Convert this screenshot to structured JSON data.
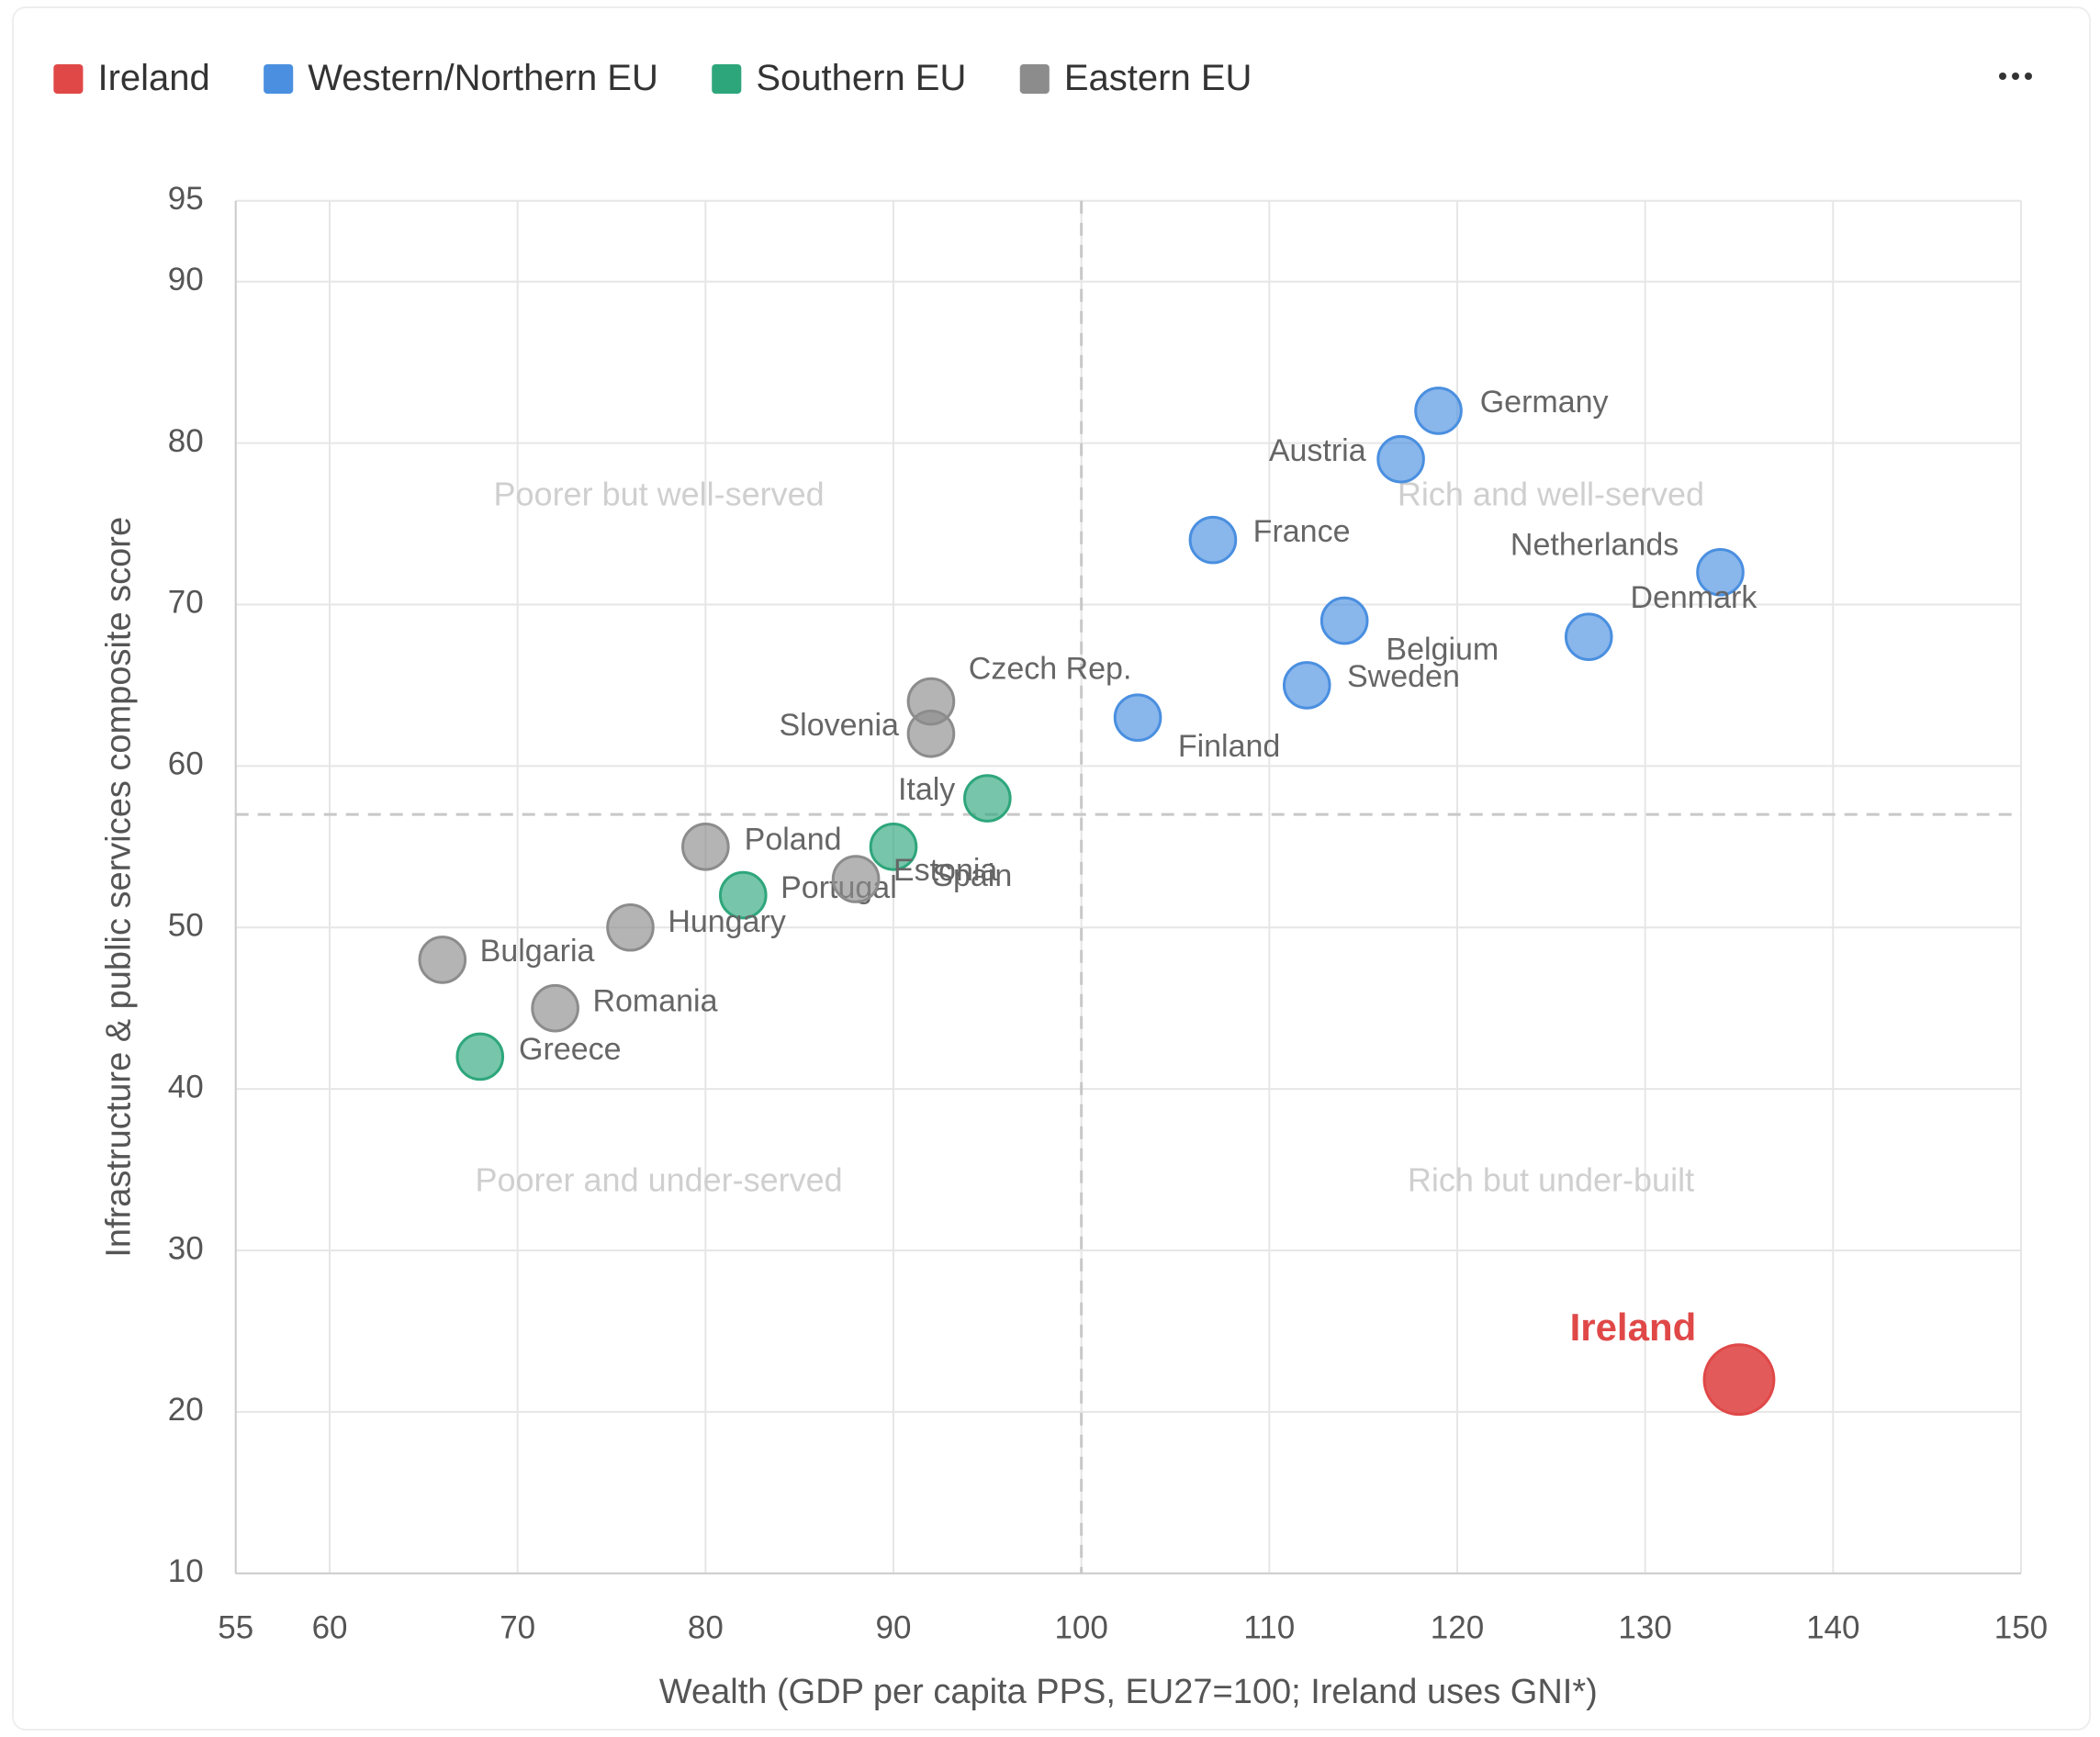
{
  "chart_data": {
    "type": "scatter",
    "xlabel": "Wealth (GDP per capita PPS, EU27=100; Ireland uses GNI*)",
    "ylabel": "Infrastructure & public services composite score",
    "xlim": [
      55,
      150
    ],
    "ylim": [
      10,
      95
    ],
    "xticks": [
      55,
      60,
      70,
      80,
      90,
      100,
      110,
      120,
      130,
      140,
      150
    ],
    "yticks": [
      10,
      20,
      30,
      40,
      50,
      60,
      70,
      80,
      90,
      95
    ],
    "grid": true,
    "legend": "top-left",
    "reference_lines": {
      "x": 100,
      "y": 57
    },
    "quadrant_labels": [
      "Poorer but well-served",
      "Rich and well-served",
      "Poorer and under-served",
      "Rich but under-built"
    ],
    "series": [
      {
        "name": "Ireland",
        "color": "#e04848",
        "x": [
          135
        ],
        "y": [
          22
        ],
        "labels": [
          "Ireland"
        ]
      },
      {
        "name": "Western/Northern EU",
        "color": "#4a8fe0",
        "x": [
          119,
          117,
          107,
          134,
          127,
          114,
          112,
          103
        ],
        "y": [
          82,
          79,
          74,
          72,
          68,
          69,
          65,
          63
        ],
        "labels": [
          "Germany",
          "Austria",
          "France",
          "Netherlands",
          "Denmark",
          "Belgium",
          "Sweden",
          "Finland"
        ]
      },
      {
        "name": "Southern EU",
        "color": "#2ea67c",
        "x": [
          95,
          90,
          82,
          68
        ],
        "y": [
          58,
          55,
          52,
          42
        ],
        "labels": [
          "Italy",
          "Spain",
          "Portugal",
          "Greece"
        ]
      },
      {
        "name": "Eastern EU",
        "color": "#8c8c8c",
        "x": [
          92,
          92,
          88,
          80,
          76,
          66,
          72
        ],
        "y": [
          64,
          62,
          53,
          55,
          50,
          48,
          45
        ],
        "labels": [
          "Czech Rep.",
          "Slovenia",
          "Estonia",
          "Poland",
          "Hungary",
          "Bulgaria",
          "Romania"
        ]
      }
    ]
  }
}
